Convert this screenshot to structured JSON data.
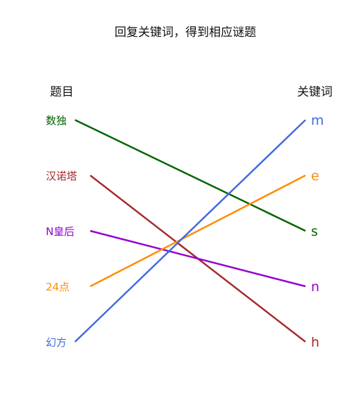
{
  "title": "回复关键词，得到相应谜题",
  "left_header": "题目",
  "right_header": "关键词",
  "topics": [
    {
      "label": "数独",
      "color": "#006400"
    },
    {
      "label": "汉诺塔",
      "color": "#a52a2a"
    },
    {
      "label": "N皇后",
      "color": "#9400d3"
    },
    {
      "label": "24点",
      "color": "#ff8c00"
    },
    {
      "label": "幻方",
      "color": "#4169e1"
    }
  ],
  "keywords": [
    {
      "label": "m",
      "color": "#4169e1"
    },
    {
      "label": "e",
      "color": "#ff8c00"
    },
    {
      "label": "s",
      "color": "#006400"
    },
    {
      "label": "n",
      "color": "#9400d3"
    },
    {
      "label": "h",
      "color": "#a52a2a"
    }
  ],
  "links": [
    {
      "topic": 0,
      "keyword": 2,
      "color": "#006400"
    },
    {
      "topic": 1,
      "keyword": 4,
      "color": "#a52a2a"
    },
    {
      "topic": 2,
      "keyword": 3,
      "color": "#9400d3"
    },
    {
      "topic": 3,
      "keyword": 1,
      "color": "#ff8c00"
    },
    {
      "topic": 4,
      "keyword": 0,
      "color": "#4169e1"
    }
  ]
}
